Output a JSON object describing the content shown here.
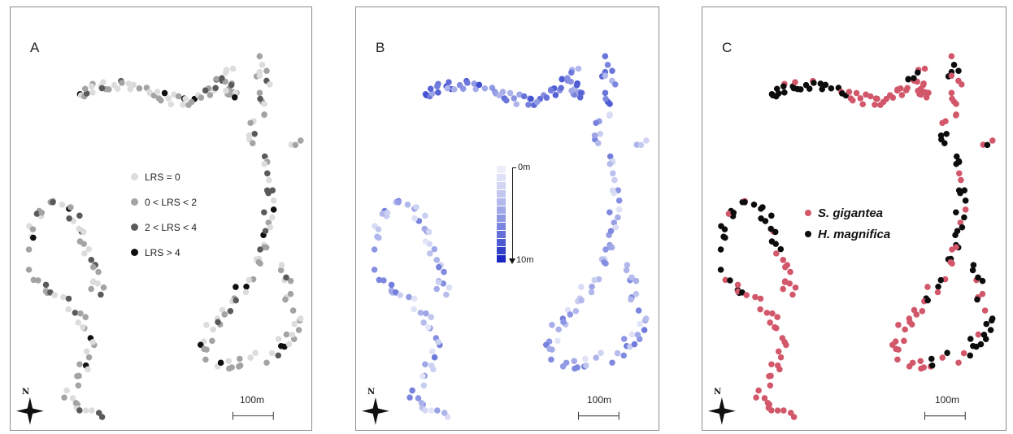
{
  "panels": [
    {
      "id": "a",
      "label": "A",
      "north_label": "N",
      "scale_label": "100m",
      "legend_a": [
        {
          "label": "LRS = 0",
          "color": "#dcdcdc"
        },
        {
          "label": "0 < LRS < 2",
          "color": "#a3a3a3"
        },
        {
          "label": "2 < LRS < 4",
          "color": "#5a5a5a"
        },
        {
          "label": "LRS > 4",
          "color": "#0f0f0f"
        }
      ]
    },
    {
      "id": "b",
      "label": "B",
      "north_label": "N",
      "scale_label": "100m",
      "legend_b": {
        "top_label": "0m",
        "bottom_label": "10m",
        "colors": [
          "#eceef9",
          "#dfe2f6",
          "#d1d5f3",
          "#c2c7f0",
          "#b2b8ec",
          "#a1a8e8",
          "#8e97e4",
          "#7b85df",
          "#6571d8",
          "#4d5bd1",
          "#3340c8",
          "#1a27c0"
        ]
      }
    },
    {
      "id": "c",
      "label": "C",
      "north_label": "N",
      "scale_label": "100m",
      "legend_c": [
        {
          "label": "S. gigantea",
          "color": "#d2576a"
        },
        {
          "label": "H. magnifica",
          "color": "#0c0c0c"
        }
      ]
    }
  ],
  "colors": {
    "lrs": [
      "#dcdcdc",
      "#a3a3a3",
      "#5a5a5a",
      "#0f0f0f"
    ],
    "depth_light": "#e4e7f7",
    "depth_dark": "#1e2ec8",
    "s_gigantea": "#d2576a",
    "h_magnifica": "#0c0c0c"
  }
}
